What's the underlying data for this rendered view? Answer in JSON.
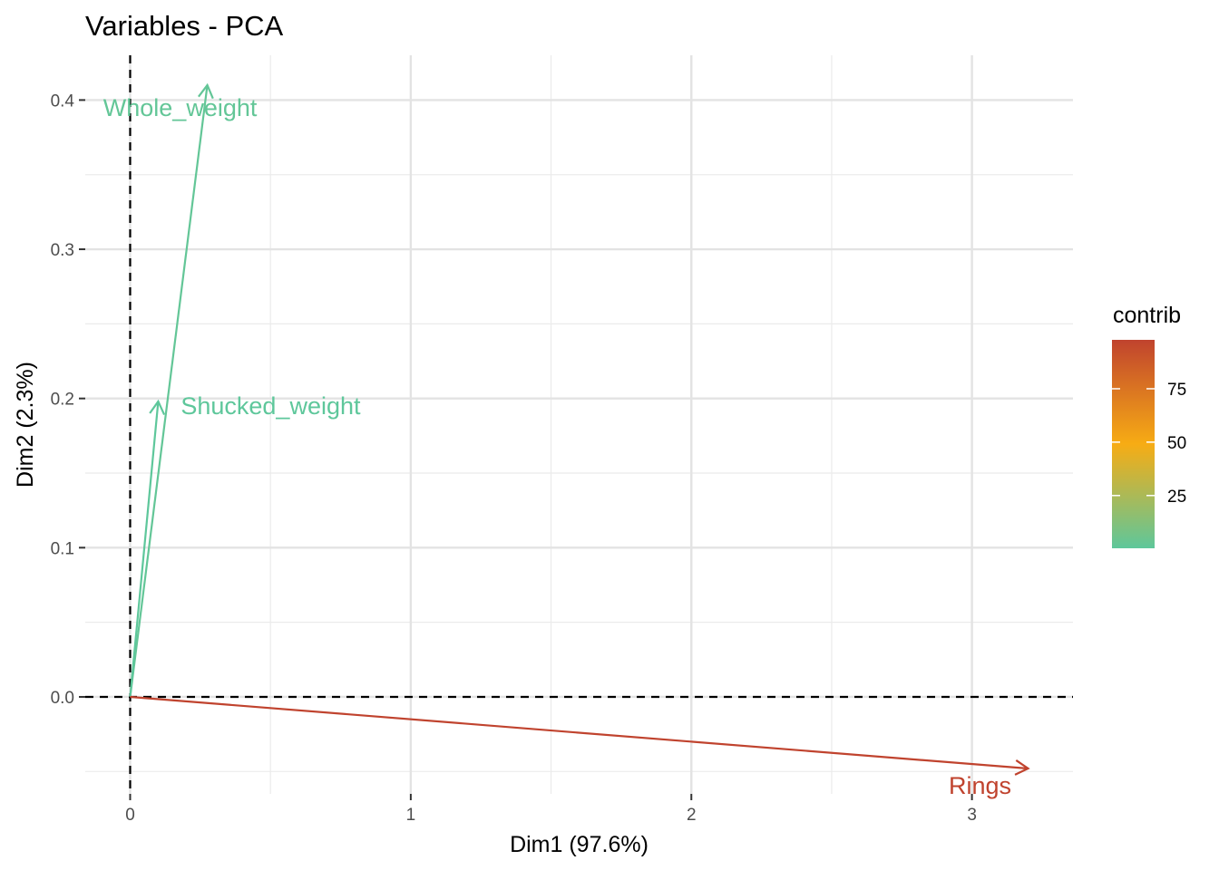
{
  "chart_data": {
    "type": "pca-variables",
    "title": "Variables - PCA",
    "xlabel": "Dim1 (97.6%)",
    "ylabel": "Dim2 (2.3%)",
    "xlim": [
      -0.16,
      3.36
    ],
    "ylim": [
      -0.065,
      0.43
    ],
    "x_ticks": [
      0,
      1,
      2,
      3
    ],
    "x_tick_labels": [
      "0",
      "1",
      "2",
      "3"
    ],
    "y_ticks": [
      0.0,
      0.1,
      0.2,
      0.3,
      0.4
    ],
    "y_tick_labels": [
      "0.0",
      "0.1",
      "0.2",
      "0.3",
      "0.4"
    ],
    "grid": true,
    "reference_lines": {
      "x": 0,
      "y": 0,
      "style": "dashed"
    },
    "variables": [
      {
        "name": "Whole_weight",
        "x": 0.275,
        "y": 0.41,
        "contrib": 1.8
      },
      {
        "name": "Shucked_weight",
        "x": 0.1,
        "y": 0.198,
        "contrib": 0.3
      },
      {
        "name": "Rings",
        "x": 3.2,
        "y": -0.048,
        "contrib": 97.9
      }
    ],
    "legend": {
      "title": "contrib",
      "position": "right",
      "range": [
        0.3,
        97.9
      ],
      "ticks": [
        25,
        50,
        75
      ],
      "tick_labels": [
        "25",
        "50",
        "75"
      ],
      "colors": [
        "#5ec79b",
        "#f7ac14",
        "#c0432e"
      ]
    }
  }
}
